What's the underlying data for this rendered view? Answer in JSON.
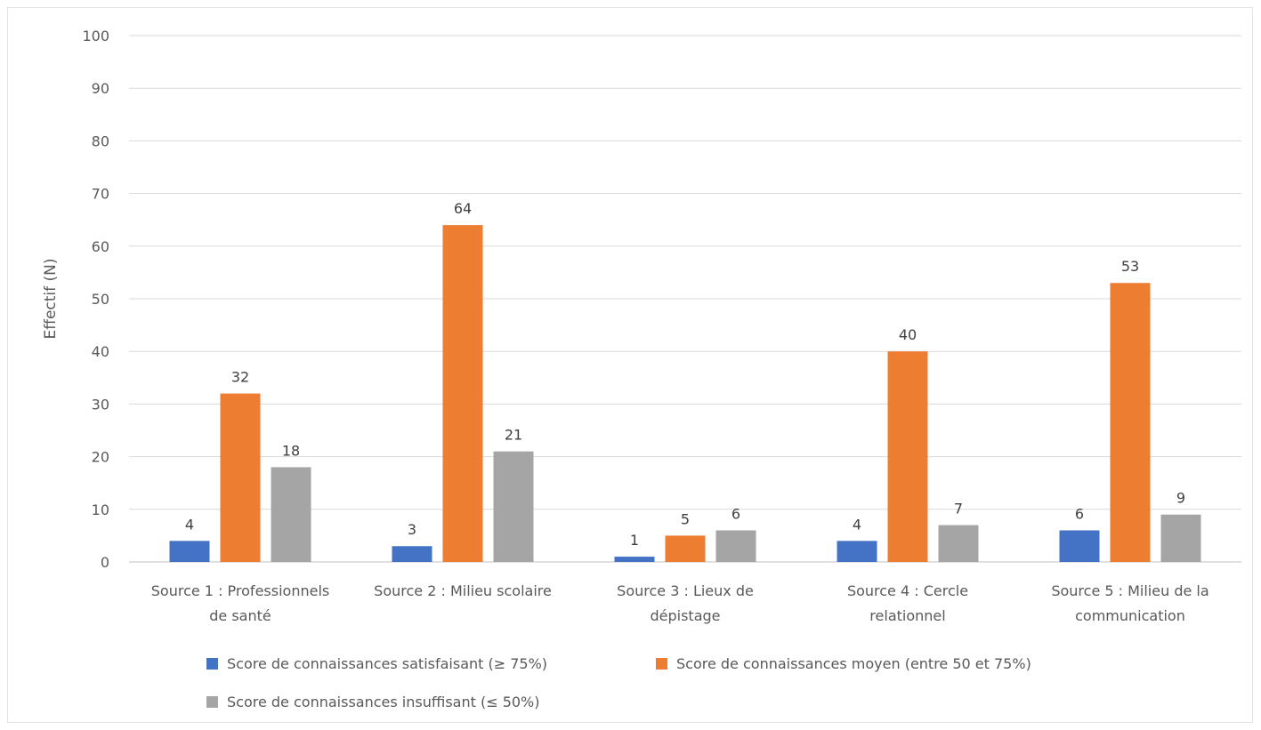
{
  "chart_data": {
    "type": "bar",
    "title": "",
    "xlabel": "",
    "ylabel": "Effectif (N)",
    "ylim": [
      0,
      100
    ],
    "yticks": [
      0,
      10,
      20,
      30,
      40,
      50,
      60,
      70,
      80,
      90,
      100
    ],
    "grid": true,
    "legend_position": "bottom",
    "categories": [
      [
        "Source 1 : Professionnels",
        "de santé"
      ],
      [
        "Source 2 : Milieu scolaire"
      ],
      [
        "Source 3 : Lieux de",
        "dépistage"
      ],
      [
        "Source 4 : Cercle",
        "relationnel"
      ],
      [
        "Source 5 : Milieu de la",
        "communication"
      ]
    ],
    "series": [
      {
        "name": "Score de connaissances satisfaisant (≥ 75%)",
        "color": "#4472c4",
        "values": [
          4,
          3,
          1,
          4,
          6
        ]
      },
      {
        "name": "Score de connaissances moyen (entre 50 et 75%)",
        "color": "#ed7d31",
        "values": [
          32,
          64,
          5,
          40,
          53
        ]
      },
      {
        "name": "Score de connaissances insuffisant (≤ 50%)",
        "color": "#a5a5a5",
        "values": [
          18,
          21,
          6,
          7,
          9
        ]
      }
    ]
  }
}
